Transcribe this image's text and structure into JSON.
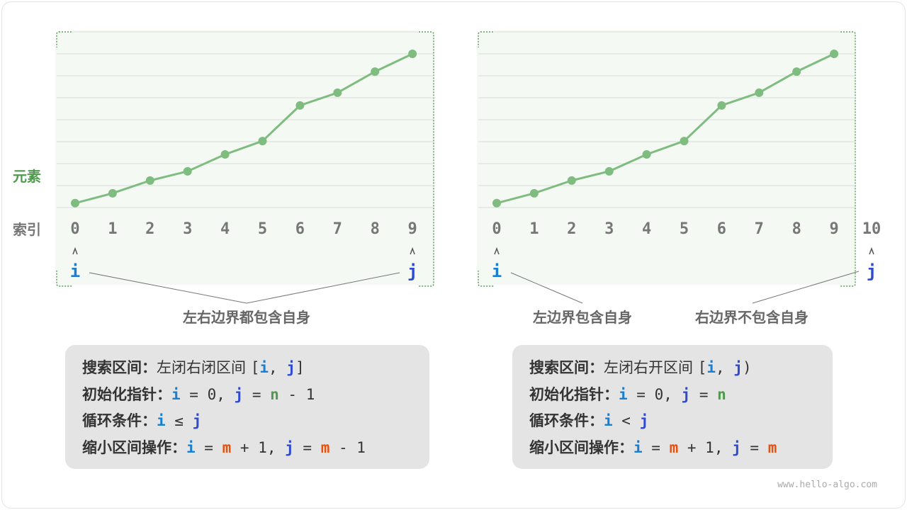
{
  "labels": {
    "element": "元素",
    "index": "索引"
  },
  "left": {
    "caption": "左右边界都包含自身",
    "indices": [
      "0",
      "1",
      "2",
      "3",
      "4",
      "5",
      "6",
      "7",
      "8",
      "9"
    ],
    "pointer_i": "i",
    "pointer_j": "j",
    "box": {
      "r1_key": "搜索区间：",
      "r1_text": "左闭右闭区间 ",
      "r1_open": "[",
      "r1_i": "i",
      "r1_sep": ", ",
      "r1_j": "j",
      "r1_close": "]",
      "r2_key": "初始化指针：",
      "r2_i": "i",
      "r2_a": " = 0, ",
      "r2_j": "j",
      "r2_b": " = ",
      "r2_n": "n",
      "r2_c": " - 1",
      "r3_key": "循环条件：",
      "r3_i": "i",
      "r3_op": " ≤ ",
      "r3_j": "j",
      "r4_key": "缩小区间操作：",
      "r4_i": "i",
      "r4_a": " = ",
      "r4_m": "m",
      "r4_b": " + 1, ",
      "r4_j": "j",
      "r4_c": " = ",
      "r4_m2": "m",
      "r4_d": " - 1"
    }
  },
  "right": {
    "caption_left": "左边界包含自身",
    "caption_right": "右边界不包含自身",
    "indices": [
      "0",
      "1",
      "2",
      "3",
      "4",
      "5",
      "6",
      "7",
      "8",
      "9",
      "10"
    ],
    "pointer_i": "i",
    "pointer_j": "j",
    "box": {
      "r1_key": "搜索区间：",
      "r1_text": "左闭右开区间 ",
      "r1_open": "[",
      "r1_i": "i",
      "r1_sep": ", ",
      "r1_j": "j",
      "r1_close": ")",
      "r2_key": "初始化指针：",
      "r2_i": "i",
      "r2_a": " = 0, ",
      "r2_j": "j",
      "r2_b": " = ",
      "r2_n": "n",
      "r3_key": "循环条件：",
      "r3_i": "i",
      "r3_op": " < ",
      "r3_j": "j",
      "r4_key": "缩小区间操作：",
      "r4_i": "i",
      "r4_a": " = ",
      "r4_m": "m",
      "r4_b": " + 1, ",
      "r4_j": "j",
      "r4_c": " = ",
      "r4_m2": "m"
    }
  },
  "watermark": "www.hello-algo.com",
  "chart_data": {
    "type": "line",
    "values": [
      0.2,
      0.65,
      1.23,
      1.65,
      2.42,
      3.03,
      4.65,
      5.23,
      6.19,
      7.0
    ],
    "ylim": [
      0,
      8
    ],
    "grid": true
  },
  "colors": {
    "line": "#7fbc7f",
    "panel": "#f4f9f4",
    "border": "#5aa05a",
    "i": "#1a7fd0",
    "j": "#2f4bd1",
    "n": "#4f9a4f",
    "m": "#e8500d",
    "label": "#4f9a4f"
  }
}
